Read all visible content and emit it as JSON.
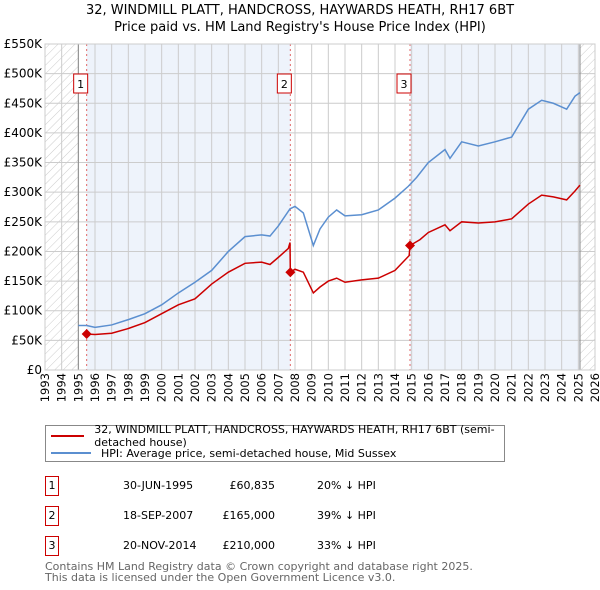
{
  "title": "32, WINDMILL PLATT, HANDCROSS, HAYWARDS HEATH, RH17 6BT",
  "subtitle": "Price paid vs. HM Land Registry's House Price Index (HPI)",
  "colors": {
    "property": "#cc0000",
    "hpi": "#5b8fd0",
    "shade": "#eef3fb"
  },
  "chart_data": {
    "type": "line",
    "title": "32, WINDMILL PLATT, HANDCROSS, HAYWARDS HEATH, RH17 6BT",
    "xlabel": "",
    "ylabel": "",
    "xlim": [
      1993,
      2026
    ],
    "ylim": [
      0,
      550000
    ],
    "x_ticks": [
      "1993",
      "1994",
      "1995",
      "1996",
      "1997",
      "1998",
      "1999",
      "2000",
      "2001",
      "2002",
      "2003",
      "2004",
      "2005",
      "2006",
      "2007",
      "2008",
      "2009",
      "2010",
      "2011",
      "2012",
      "2013",
      "2014",
      "2015",
      "2016",
      "2017",
      "2018",
      "2019",
      "2020",
      "2021",
      "2022",
      "2023",
      "2024",
      "2025",
      "2026"
    ],
    "y_ticks": [
      {
        "v": 0,
        "label": "£0"
      },
      {
        "v": 50000,
        "label": "£50K"
      },
      {
        "v": 100000,
        "label": "£100K"
      },
      {
        "v": 150000,
        "label": "£150K"
      },
      {
        "v": 200000,
        "label": "£200K"
      },
      {
        "v": 250000,
        "label": "£250K"
      },
      {
        "v": 300000,
        "label": "£300K"
      },
      {
        "v": 350000,
        "label": "£350K"
      },
      {
        "v": 400000,
        "label": "£400K"
      },
      {
        "v": 450000,
        "label": "£450K"
      },
      {
        "v": 500000,
        "label": "£500K"
      },
      {
        "v": 550000,
        "label": "£550K"
      }
    ],
    "grid": true,
    "series": [
      {
        "name": "32, WINDMILL PLATT, HANDCROSS, HAYWARDS HEATH, RH17 6BT (semi-detached house)",
        "color": "#cc0000",
        "x": [
          1995.5,
          1996,
          1997,
          1998,
          1999,
          2000,
          2001,
          2002,
          2003,
          2004,
          2005,
          2006,
          2006.5,
          2007,
          2007.6,
          2007.7,
          2007.72,
          2008,
          2008.5,
          2009.1,
          2009.5,
          2010,
          2010.5,
          2011,
          2012,
          2013,
          2014,
          2014.85,
          2014.9,
          2015.5,
          2016,
          2017,
          2017.3,
          2018,
          2019,
          2020,
          2021,
          2022,
          2022.8,
          2023.5,
          2024.3,
          2024.8,
          2025.1
        ],
        "y": [
          60835,
          60000,
          62000,
          70000,
          80000,
          95000,
          110000,
          120000,
          145000,
          165000,
          180000,
          182000,
          178000,
          190000,
          205000,
          215000,
          165000,
          170000,
          165000,
          130000,
          140000,
          150000,
          155000,
          148000,
          152000,
          155000,
          168000,
          193000,
          210000,
          220000,
          232000,
          245000,
          235000,
          250000,
          248000,
          250000,
          255000,
          280000,
          295000,
          292000,
          287000,
          302000,
          312000
        ]
      },
      {
        "name": "HPI: Average price, semi-detached house, Mid Sussex",
        "color": "#5b8fd0",
        "x": [
          1995,
          1995.5,
          1996,
          1997,
          1998,
          1999,
          2000,
          2001,
          2002,
          2003,
          2004,
          2005,
          2006,
          2006.5,
          2007,
          2007.7,
          2008,
          2008.5,
          2009.1,
          2009.5,
          2010,
          2010.5,
          2011,
          2012,
          2013,
          2014,
          2014.8,
          2015.3,
          2016,
          2017,
          2017.3,
          2018,
          2019,
          2020,
          2021,
          2022,
          2022.8,
          2023.5,
          2024.3,
          2024.8,
          2025.1
        ],
        "y": [
          75000,
          75000,
          72000,
          76000,
          85000,
          95000,
          110000,
          130000,
          148000,
          168000,
          200000,
          225000,
          228000,
          226000,
          243000,
          272000,
          276000,
          265000,
          210000,
          238000,
          258000,
          270000,
          260000,
          262000,
          270000,
          290000,
          310000,
          325000,
          350000,
          372000,
          357000,
          385000,
          378000,
          385000,
          393000,
          440000,
          455000,
          450000,
          440000,
          462000,
          468000
        ]
      }
    ],
    "sales": [
      {
        "label": "1",
        "x": 1995.5,
        "y": 60835
      },
      {
        "label": "2",
        "x": 2007.72,
        "y": 165000
      },
      {
        "label": "3",
        "x": 2014.9,
        "y": 210000
      }
    ],
    "shaded_ranges": [
      [
        1995.5,
        2007.72
      ],
      [
        2014.9,
        2025.1
      ]
    ],
    "hatched_ranges": [
      [
        1993,
        1995
      ],
      [
        2025.1,
        2026
      ]
    ]
  },
  "legend": {
    "property": "32, WINDMILL PLATT, HANDCROSS, HAYWARDS HEATH, RH17 6BT (semi-detached house)",
    "hpi": "HPI: Average price, semi-detached house, Mid Sussex"
  },
  "transactions": [
    {
      "num": "1",
      "date": "30-JUN-1995",
      "price": "£60,835",
      "hpi": "20% ↓ HPI"
    },
    {
      "num": "2",
      "date": "18-SEP-2007",
      "price": "£165,000",
      "hpi": "39% ↓ HPI"
    },
    {
      "num": "3",
      "date": "20-NOV-2014",
      "price": "£210,000",
      "hpi": "33% ↓ HPI"
    }
  ],
  "footer": {
    "line1": "Contains HM Land Registry data © Crown copyright and database right 2025.",
    "line2": "This data is licensed under the Open Government Licence v3.0."
  }
}
